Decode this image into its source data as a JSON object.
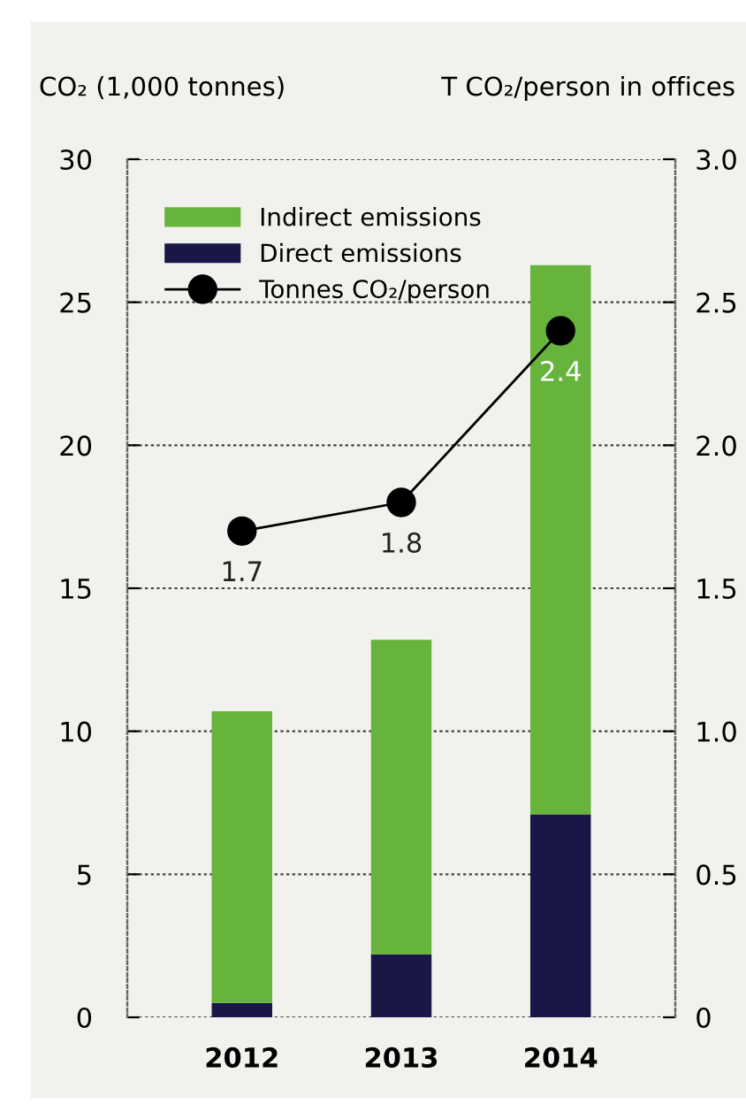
{
  "chart_data": {
    "type": "bar",
    "stacked": true,
    "ylabel": "CO₂ (1,000 tonnes)",
    "y2label": "T CO₂/person in offices",
    "categories": [
      "2012",
      "2013",
      "2014"
    ],
    "series": [
      {
        "name": "Direct emissions",
        "color": "#1a1748",
        "values": [
          0.5,
          2.2,
          7.1
        ]
      },
      {
        "name": "Indirect emissions",
        "color": "#66b43c",
        "values": [
          10.2,
          11.0,
          19.2
        ]
      },
      {
        "name": "Tonnes CO₂/person",
        "type": "line",
        "axis": "y2",
        "color": "#000000",
        "marker": "circle",
        "values": [
          1.7,
          1.8,
          2.4
        ],
        "data_labels": true
      }
    ],
    "ylim": [
      0,
      30
    ],
    "yticks": [
      0,
      5,
      10,
      15,
      20,
      25,
      30
    ],
    "y2lim": [
      0,
      3
    ],
    "y2ticks": [
      0,
      {
        "value": 0.5,
        "label": "0.5"
      },
      {
        "value": 1,
        "label": "1.0"
      },
      {
        "value": 1.5,
        "label": "1.5"
      },
      {
        "value": 2,
        "label": "2.0"
      },
      {
        "value": 2.5,
        "label": "2.5"
      },
      {
        "value": 3,
        "label": "3.0"
      }
    ],
    "grid": "y",
    "legend": "top left"
  }
}
